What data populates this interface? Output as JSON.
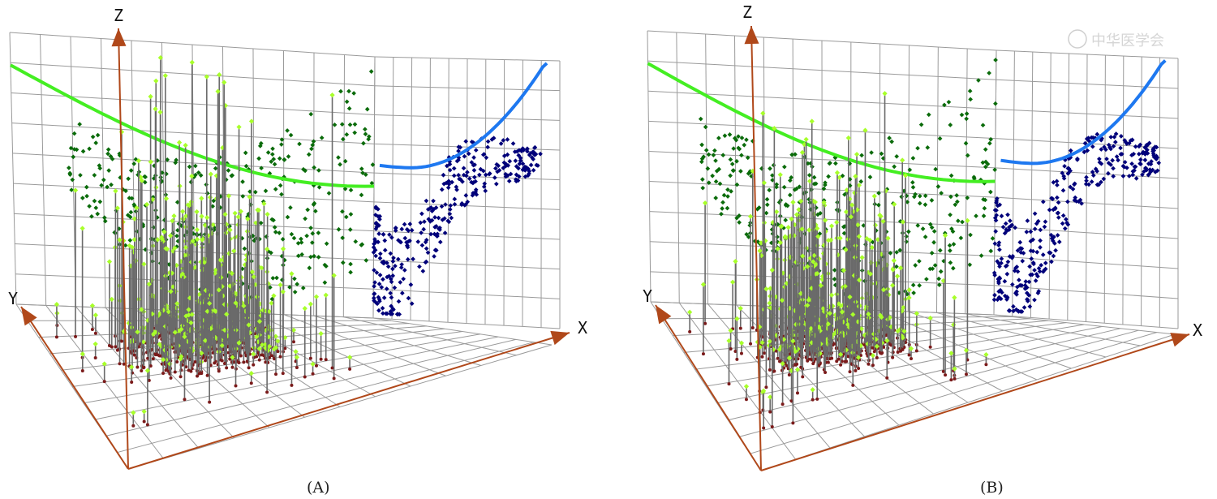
{
  "chart_data": [
    {
      "type": "scatter",
      "panel_label": "(A)",
      "axes": {
        "x": "X",
        "y": "Y",
        "z": "Z"
      },
      "grid": true,
      "series": [
        {
          "name": "",
          "role": "xz-projection",
          "color": "#0a6b0a"
        },
        {
          "name": "",
          "role": "yz-projection",
          "color": "#00007a"
        },
        {
          "name": "",
          "role": "points",
          "color": "#a8ff2a"
        },
        {
          "name": "",
          "role": "floor-projection",
          "color": "#7a1a1a"
        },
        {
          "name": "",
          "role": "xz-fit-curve",
          "color": "#44ee22"
        },
        {
          "name": "",
          "role": "yz-fit-curve",
          "color": "#1e78f0"
        }
      ]
    },
    {
      "type": "scatter",
      "panel_label": "(B)",
      "axes": {
        "x": "X",
        "y": "Y",
        "z": "Z"
      },
      "grid": true,
      "series": [
        {
          "name": "",
          "role": "xz-projection",
          "color": "#0a6b0a"
        },
        {
          "name": "",
          "role": "yz-projection",
          "color": "#00007a"
        },
        {
          "name": "",
          "role": "points",
          "color": "#a8ff2a"
        },
        {
          "name": "",
          "role": "floor-projection",
          "color": "#7a1a1a"
        },
        {
          "name": "",
          "role": "xz-fit-curve",
          "color": "#44ee22"
        },
        {
          "name": "",
          "role": "yz-fit-curve",
          "color": "#1e78f0"
        }
      ]
    }
  ],
  "colors": {
    "grid": "#9a9a9a",
    "axis": "#b0481a",
    "stem": "#6a6a6a"
  },
  "watermark_text": "中华医学会"
}
